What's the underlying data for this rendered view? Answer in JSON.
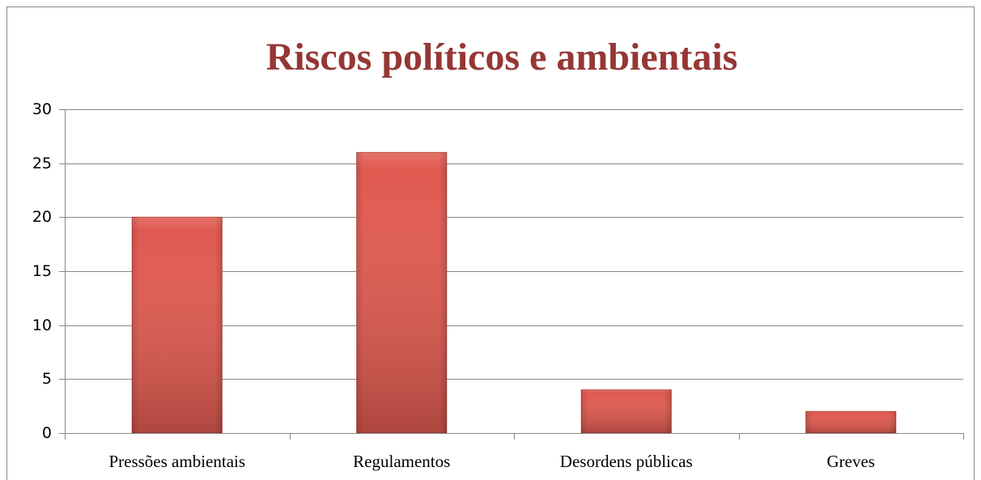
{
  "chart_data": {
    "type": "bar",
    "title": "Riscos políticos e ambientais",
    "categories": [
      "Pressões ambientais",
      "Regulamentos",
      "Desordens públicas",
      "Greves"
    ],
    "values": [
      20,
      26,
      4,
      2
    ],
    "color": "#e05a50",
    "ylim": [
      0,
      30
    ],
    "yticks": [
      0,
      5,
      10,
      15,
      20,
      25,
      30
    ],
    "grid": true
  }
}
